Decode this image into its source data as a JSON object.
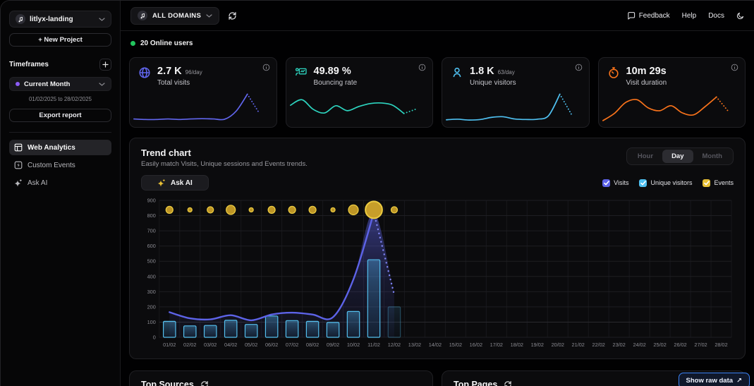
{
  "sidebar": {
    "project_name": "litlyx-landing",
    "new_project_label": "+ New Project",
    "timeframes_label": "Timeframes",
    "timeframe_selected": "Current Month",
    "timeframe_range": "01/02/2025 to 28/02/2025",
    "export_label": "Export report",
    "nav": [
      {
        "label": "Web Analytics",
        "icon": "layout-dashboard",
        "active": true
      },
      {
        "label": "Custom Events",
        "icon": "zap-square",
        "active": false
      },
      {
        "label": "Ask AI",
        "icon": "sparkles",
        "active": false
      }
    ]
  },
  "topbar": {
    "domain_selector": "ALL DOMAINS",
    "feedback": "Feedback",
    "help": "Help",
    "docs": "Docs"
  },
  "online": {
    "count": "20",
    "label": "20 Online users"
  },
  "stats": [
    {
      "icon": "globe",
      "color": "#6166ee",
      "value": "2.7 K",
      "per_day": "96/day",
      "label": "Total visits",
      "spark": {
        "values": [
          10,
          8,
          8,
          10,
          8,
          10,
          11,
          10,
          9,
          38,
          100,
          34
        ],
        "dotted_from": 10
      }
    },
    {
      "icon": "bounce",
      "color": "#2dd4bf",
      "value": "49.89 %",
      "per_day": "",
      "label": "Bouncing rate",
      "spark": {
        "values": [
          60,
          80,
          45,
          32,
          58,
          40,
          55,
          66,
          68,
          60,
          30,
          45
        ],
        "dotted_from": 10
      }
    },
    {
      "icon": "user",
      "color": "#4fc0f0",
      "value": "1.8 K",
      "per_day": "63/day",
      "label": "Unique visitors",
      "spark": {
        "values": [
          7,
          9,
          6,
          8,
          16,
          18,
          10,
          8,
          9,
          22,
          100,
          28
        ],
        "dotted_from": 10
      }
    },
    {
      "icon": "timer",
      "color": "#f9731b",
      "value": "10m 29s",
      "per_day": "",
      "label": "Visit duration",
      "spark": {
        "values": [
          4,
          30,
          70,
          80,
          50,
          40,
          58,
          32,
          25,
          55,
          90,
          40
        ],
        "dotted_from": 10
      }
    }
  ],
  "trend": {
    "title": "Trend chart",
    "subtitle": "Easily match Visits, Unique sessions and Events trends.",
    "ask_ai_label": "Ask AI",
    "granularity": [
      "Hour",
      "Day",
      "Month"
    ],
    "granularity_active": "Day",
    "legend": [
      {
        "label": "Visits",
        "color": "#5d63e8"
      },
      {
        "label": "Unique visitors",
        "color": "#4fc0f0"
      },
      {
        "label": "Events",
        "color": "#e7bf35"
      }
    ]
  },
  "chart_data": {
    "type": "mixed",
    "title": "Trend chart",
    "xlabel": "",
    "ylabel": "",
    "ylim": [
      0,
      900
    ],
    "yticks": [
      0,
      100,
      200,
      300,
      400,
      500,
      600,
      700,
      800,
      900
    ],
    "grid": true,
    "categories": [
      "01/02",
      "02/02",
      "03/02",
      "04/02",
      "05/02",
      "06/02",
      "07/02",
      "08/02",
      "09/02",
      "10/02",
      "11/02",
      "12/02",
      "13/02",
      "14/02",
      "15/02",
      "16/02",
      "17/02",
      "18/02",
      "19/02",
      "20/02",
      "21/02",
      "22/02",
      "23/02",
      "24/02",
      "25/02",
      "26/02",
      "27/02",
      "28/02"
    ],
    "series": [
      {
        "name": "Visits",
        "type": "line",
        "color": "#5d63e8",
        "values": [
          165,
          125,
          118,
          145,
          112,
          150,
          162,
          150,
          132,
          380,
          820,
          280
        ],
        "dotted_from": 10
      },
      {
        "name": "Unique visitors",
        "type": "bar",
        "color": "#54c0ef",
        "values": [
          105,
          75,
          78,
          112,
          85,
          140,
          110,
          105,
          98,
          170,
          510,
          200
        ],
        "faded_from": 11
      },
      {
        "name": "Events",
        "type": "dot",
        "color": "#e7bf35",
        "dot_y": 838,
        "radii": [
          5,
          3,
          4.5,
          6.5,
          3,
          5,
          5,
          5,
          3,
          7,
          12,
          4.5
        ]
      }
    ]
  },
  "bottom": {
    "sources_title": "Top Sources",
    "pages_title": "Top Pages",
    "show_raw_label": "Show raw data",
    "show_raw_arrow": "↗"
  }
}
